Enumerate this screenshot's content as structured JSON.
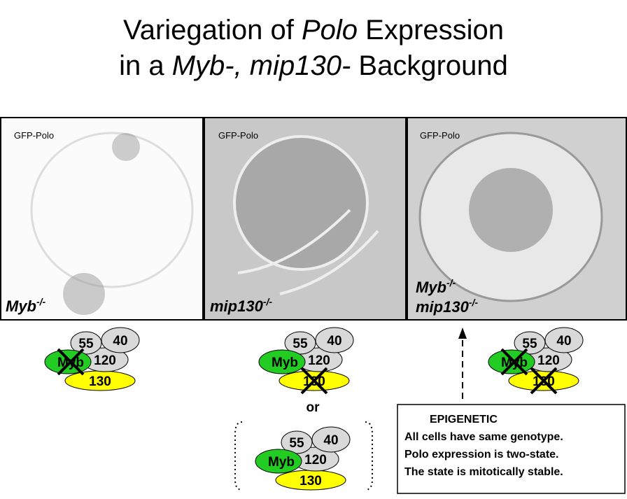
{
  "title": {
    "line1": [
      "Variegation of ",
      "Polo",
      " Expression"
    ],
    "line2": [
      "in a ",
      "Myb-, mip130-",
      " Background"
    ]
  },
  "panels": [
    {
      "label": "GFP-Polo",
      "genotype": [
        {
          "name": "Myb",
          "sup": "-/-"
        }
      ]
    },
    {
      "label": "GFP-Polo",
      "genotype": [
        {
          "name": "mip130",
          "sup": "-/-"
        }
      ]
    },
    {
      "label": "GFP-Polo",
      "genotype": [
        {
          "name": "Myb",
          "sup": "-/-"
        },
        {
          "name": "mip130",
          "sup": "-/-"
        }
      ]
    }
  ],
  "complexes": [
    {
      "subunits": [
        "55",
        "40",
        "Myb",
        "120",
        "130"
      ]
    },
    {
      "subunits": [
        "55",
        "40",
        "Myb",
        "120",
        "130"
      ]
    },
    {
      "subunits": [
        "55",
        "40",
        "Myb",
        "120",
        "130"
      ]
    },
    {
      "subunits": [
        "55",
        "40",
        "Myb",
        "120",
        "130"
      ]
    }
  ],
  "or_label": "or",
  "epigenetic": {
    "heading": "EPIGENETIC",
    "lines": [
      "All cells have same genotype.",
      "Polo expression is two-state.",
      "The state is mitotically  stable."
    ]
  }
}
